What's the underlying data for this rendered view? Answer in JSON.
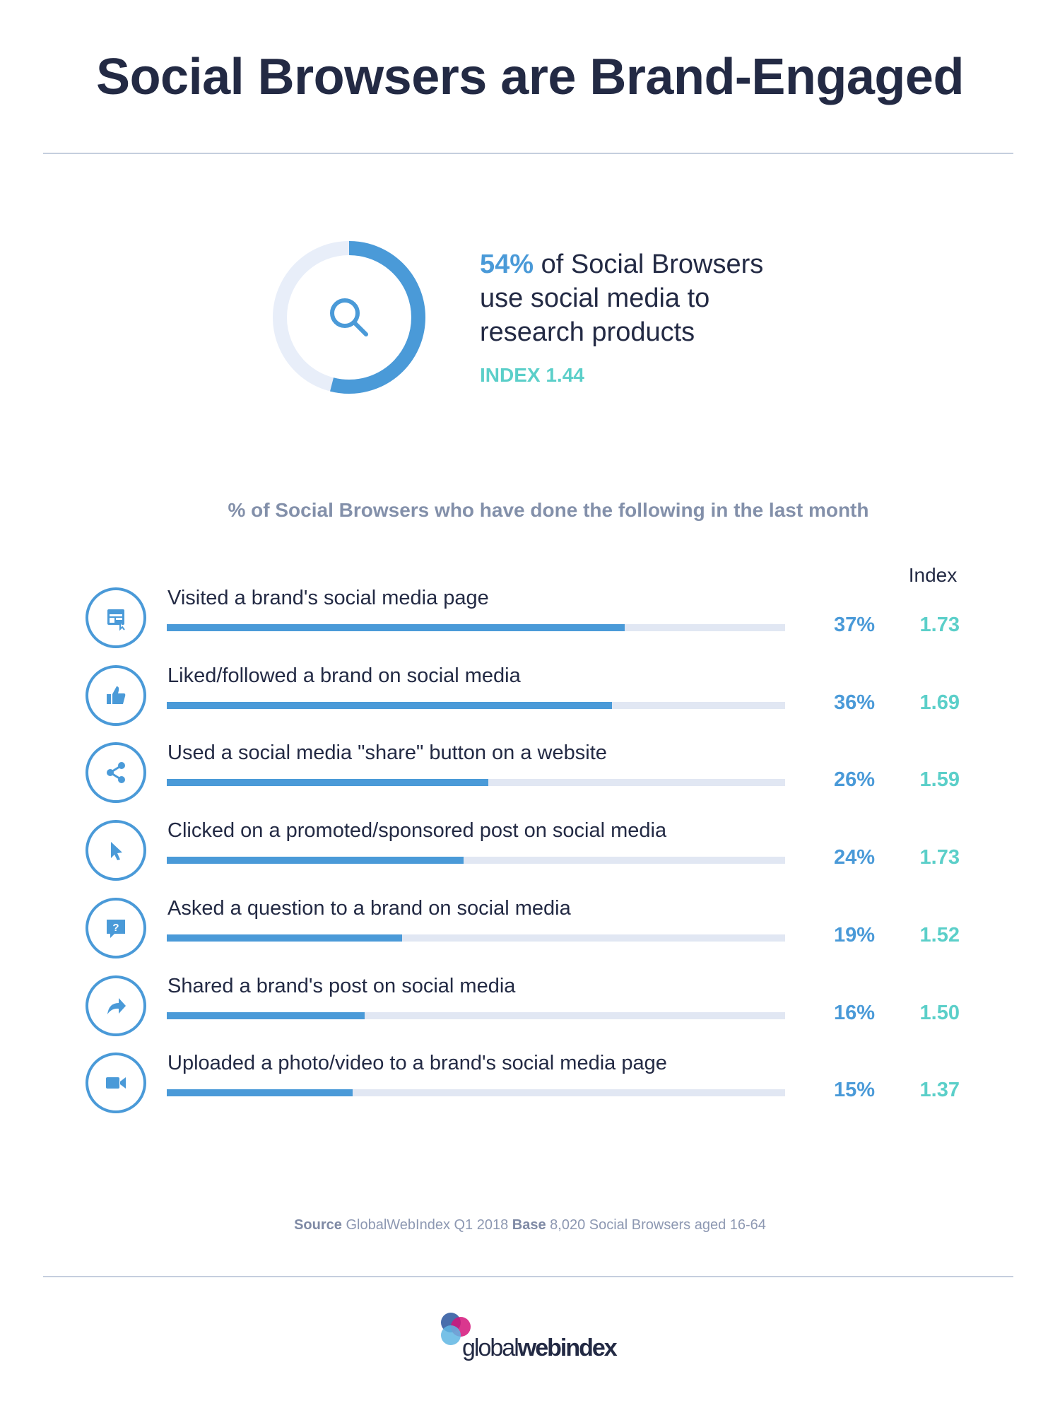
{
  "title": "Social Browsers are Brand-Engaged",
  "highlight": {
    "percent": "54%",
    "percent_value": 54,
    "text_line1": " of Social Browsers",
    "text_line2": "use social media to",
    "text_line3": "research products",
    "index": "INDEX 1.44",
    "icon": "search-icon"
  },
  "chart_data": {
    "type": "bar",
    "orientation": "horizontal",
    "title": "% of Social Browsers who have done the following in the last month",
    "index_header": "Index",
    "xlim": [
      0,
      50
    ],
    "categories": [
      "Visited a brand's social media page",
      "Liked/followed a brand on social media",
      "Used a social media \"share\" button on a website",
      "Clicked on a promoted/sponsored post on social media",
      "Asked a question to a brand on social media",
      "Shared a brand's post on social media",
      "Uploaded a photo/video to a brand's social media page"
    ],
    "values": [
      37,
      36,
      26,
      24,
      19,
      16,
      15
    ],
    "value_labels": [
      "37%",
      "36%",
      "26%",
      "24%",
      "19%",
      "16%",
      "15%"
    ],
    "index_values": [
      "1.73",
      "1.69",
      "1.59",
      "1.73",
      "1.52",
      "1.50",
      "1.37"
    ],
    "icons": [
      "webpage-icon",
      "thumbs-up-icon",
      "share-icon",
      "cursor-icon",
      "question-bubble-icon",
      "forward-arrow-icon",
      "video-camera-icon"
    ]
  },
  "footer": {
    "source_label": "Source",
    "source_text": " GlobalWebIndex Q1 2018 ",
    "base_label": "Base",
    "base_text": " 8,020 Social Browsers aged 16-64"
  },
  "logo": {
    "light": "global",
    "bold": "webindex"
  },
  "colors": {
    "navy": "#232a44",
    "blue": "#4a9ad8",
    "teal": "#5bcfc9",
    "track": "#e1e7f3",
    "muted": "#8390aa"
  }
}
